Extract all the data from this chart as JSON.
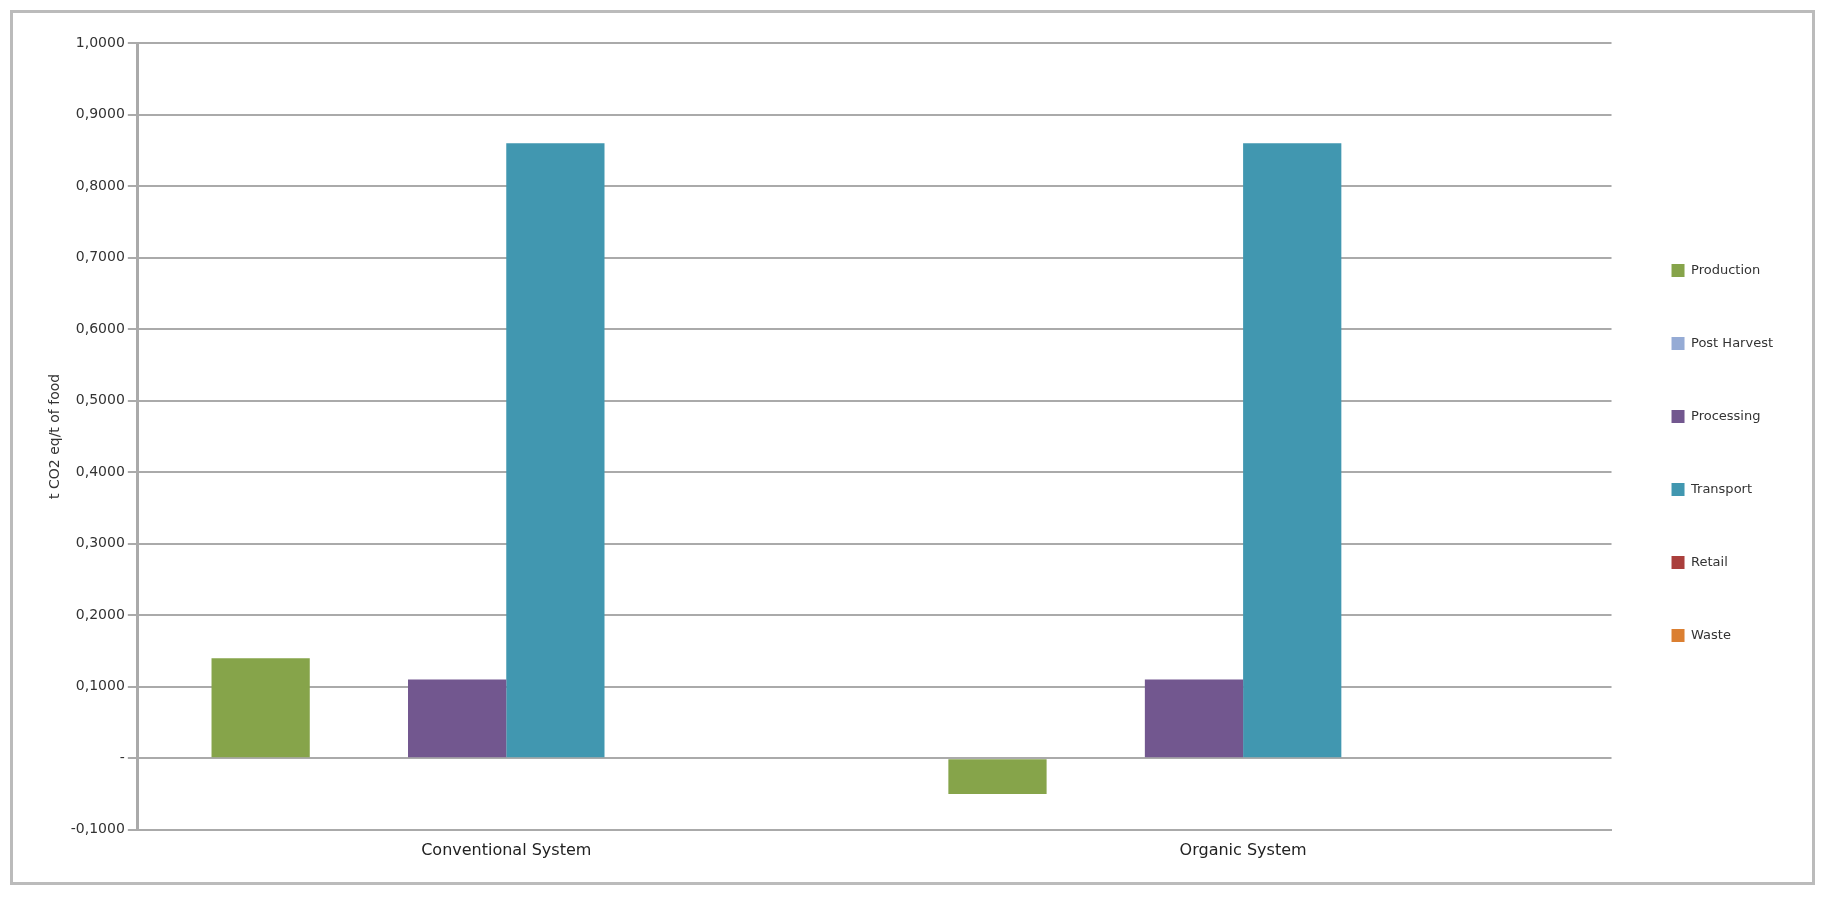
{
  "chart_data": {
    "type": "bar",
    "categories": [
      "Conventional System",
      "Organic System"
    ],
    "ylabel": "t CO2 eq/t of food",
    "series": [
      {
        "name": "Production",
        "color": "#86a44a",
        "values": [
          0.14,
          -0.05
        ]
      },
      {
        "name": "Post Harvest",
        "color": "#95abd5",
        "values": [
          0,
          0
        ]
      },
      {
        "name": "Processing",
        "color": "#72578f",
        "values": [
          0.11,
          0.11
        ]
      },
      {
        "name": "Transport",
        "color": "#4197b0",
        "values": [
          0.86,
          0.86
        ]
      },
      {
        "name": "Retail",
        "color": "#aa3f3c",
        "values": [
          0,
          0
        ]
      },
      {
        "name": "Waste",
        "color": "#db7f31",
        "values": [
          0,
          0
        ]
      }
    ],
    "ylim": [
      -0.1,
      1.0
    ],
    "yticks": [
      {
        "value": -0.1,
        "label": "-0,1000"
      },
      {
        "value": 0,
        "label": "-"
      },
      {
        "value": 0.1,
        "label": "0,1000"
      },
      {
        "value": 0.2,
        "label": "0,2000"
      },
      {
        "value": 0.3,
        "label": "0,3000"
      },
      {
        "value": 0.4,
        "label": "0,4000"
      },
      {
        "value": 0.5,
        "label": "0,5000"
      },
      {
        "value": 0.6,
        "label": "0,6000"
      },
      {
        "value": 0.7,
        "label": "0,7000"
      },
      {
        "value": 0.8,
        "label": "0,8000"
      },
      {
        "value": 0.9,
        "label": "0,9000"
      },
      {
        "value": 1.0,
        "label": "1,0000"
      }
    ],
    "grid": "y",
    "legend": "right"
  }
}
